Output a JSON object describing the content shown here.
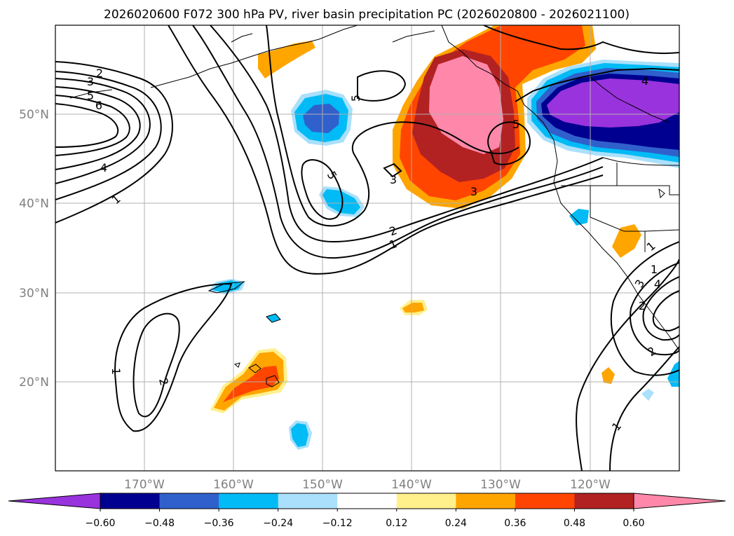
{
  "chart_data": {
    "type": "contour-map",
    "title": "2026020600 F072 300 hPa PV, river basin precipitation PC (2026020800 - 2026021100)",
    "lon_range": [
      -180,
      -110
    ],
    "lat_range": [
      10,
      60
    ],
    "x_ticks": [
      "170°W",
      "160°W",
      "150°W",
      "140°W",
      "130°W",
      "120°W"
    ],
    "y_ticks": [
      "20°N",
      "30°N",
      "40°N",
      "50°N"
    ],
    "contour_variable": "300 hPa PV",
    "contour_levels": [
      1,
      2,
      3,
      4,
      5,
      6
    ],
    "contour_label_texts": [
      "2",
      "3",
      "5",
      "6",
      "4",
      "1",
      "5",
      "5",
      "3",
      "3",
      "5",
      "4",
      "2",
      "1",
      "1",
      "2",
      "1",
      "3",
      "4",
      "2",
      "1",
      "1",
      "2"
    ],
    "shading_variable": "river basin precipitation PC",
    "colorbar": {
      "extend": "both",
      "ticks": [
        "−0.60",
        "−0.48",
        "−0.36",
        "−0.24",
        "−0.12",
        "0.12",
        "0.24",
        "0.36",
        "0.48",
        "0.60"
      ],
      "colors": [
        "#9933dd",
        "#000090",
        "#3060cc",
        "#00bbf6",
        "#aae0fb",
        "#ffffff",
        "#fff08c",
        "#ffa500",
        "#ff4500",
        "#b22222",
        "#ff88aa"
      ]
    },
    "shaded_regions": [
      {
        "name": "gulf-of-alaska-positive",
        "value": 0.6
      },
      {
        "name": "pacific-northwest-negative",
        "value": -0.6
      },
      {
        "name": "hawaii-positive",
        "value": 0.36
      },
      {
        "name": "aleutian-positive",
        "value": 0.24
      },
      {
        "name": "central-pacific-negative-north",
        "value": -0.36
      },
      {
        "name": "central-pacific-negative-mid",
        "value": -0.24
      },
      {
        "name": "california-positive",
        "value": 0.24
      }
    ]
  }
}
